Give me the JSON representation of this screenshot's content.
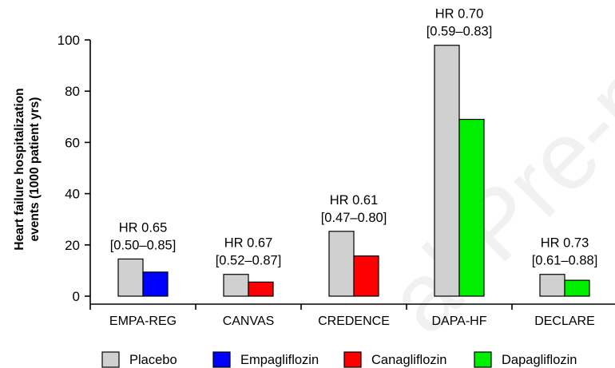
{
  "chart_data": {
    "type": "bar",
    "ylabel_line1": "Heart failure hospitalization",
    "ylabel_line2": "events (1000 patient  yrs)",
    "ylim": [
      0,
      100
    ],
    "yticks": [
      0,
      20,
      40,
      60,
      80,
      100
    ],
    "categories": [
      "EMPA-REG",
      "CANVAS",
      "CREDENCE",
      "DAPA-HF",
      "DECLARE"
    ],
    "placebo": [
      14.5,
      8.5,
      25.3,
      97.9,
      8.5
    ],
    "treatment": [
      {
        "name": "Empagliflozin",
        "value": 9.4
      },
      {
        "name": "Canagliflozin",
        "value": 5.5
      },
      {
        "name": "Canagliflozin",
        "value": 15.7
      },
      {
        "name": "Dapagliflozin",
        "value": 69.0
      },
      {
        "name": "Dapagliflozin",
        "value": 6.2
      }
    ],
    "annotations": [
      {
        "line1": "HR 0.65",
        "line2": "[0.50–0.85]"
      },
      {
        "line1": "HR 0.67",
        "line2": "[0.52–0.87]"
      },
      {
        "line1": "HR 0.61",
        "line2": "[0.47–0.80]"
      },
      {
        "line1": "HR 0.70",
        "line2": "[0.59–0.83]"
      },
      {
        "line1": "HR 0.73",
        "line2": "[0.61–0.88]"
      }
    ],
    "legend": [
      {
        "name": "Placebo",
        "color": "#d0d0d0"
      },
      {
        "name": "Empagliflozin",
        "color": "#0000ff"
      },
      {
        "name": "Canagliflozin",
        "color": "#ff0000"
      },
      {
        "name": "Dapagliflozin",
        "color": "#00ee00"
      }
    ],
    "colors": {
      "Placebo": "#d0d0d0",
      "Empagliflozin": "#0000ff",
      "Canagliflozin": "#ff0000",
      "Dapagliflozin": "#00ee00"
    },
    "grid": false,
    "legend_position": "bottom"
  },
  "watermark_text": "al Pre-pro"
}
